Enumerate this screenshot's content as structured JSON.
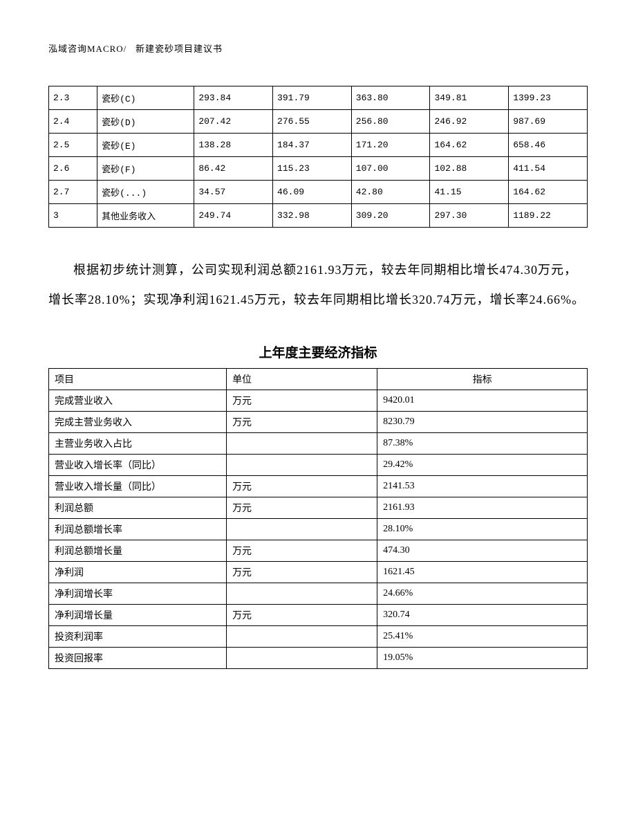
{
  "header": {
    "company": "泓域咨询MACRO/",
    "doc_title": "新建瓷砂项目建议书"
  },
  "table1": {
    "rows": [
      {
        "id": "2.3",
        "name": "瓷砂(C)",
        "v1": "293.84",
        "v2": "391.79",
        "v3": "363.80",
        "v4": "349.81",
        "v5": "1399.23"
      },
      {
        "id": "2.4",
        "name": "瓷砂(D)",
        "v1": "207.42",
        "v2": "276.55",
        "v3": "256.80",
        "v4": "246.92",
        "v5": "987.69"
      },
      {
        "id": "2.5",
        "name": "瓷砂(E)",
        "v1": "138.28",
        "v2": "184.37",
        "v3": "171.20",
        "v4": "164.62",
        "v5": "658.46"
      },
      {
        "id": "2.6",
        "name": "瓷砂(F)",
        "v1": "86.42",
        "v2": "115.23",
        "v3": "107.00",
        "v4": "102.88",
        "v5": "411.54"
      },
      {
        "id": "2.7",
        "name": "瓷砂(...)",
        "v1": "34.57",
        "v2": "46.09",
        "v3": "42.80",
        "v4": "41.15",
        "v5": "164.62"
      },
      {
        "id": "3",
        "name": "其他业务收入",
        "v1": "249.74",
        "v2": "332.98",
        "v3": "309.20",
        "v4": "297.30",
        "v5": "1189.22"
      }
    ]
  },
  "paragraph": "根据初步统计测算，公司实现利润总额2161.93万元，较去年同期相比增长474.30万元，增长率28.10%；实现净利润1621.45万元，较去年同期相比增长320.74万元，增长率24.66%。",
  "section_title": "上年度主要经济指标",
  "table2": {
    "headers": {
      "project": "项目",
      "unit": "单位",
      "indicator": "指标"
    },
    "rows": [
      {
        "project": "完成营业收入",
        "unit": "万元",
        "indicator": "9420.01"
      },
      {
        "project": "完成主营业务收入",
        "unit": "万元",
        "indicator": "8230.79"
      },
      {
        "project": "主营业务收入占比",
        "unit": "",
        "indicator": "87.38%"
      },
      {
        "project": "营业收入增长率（同比）",
        "unit": "",
        "indicator": "29.42%"
      },
      {
        "project": "营业收入增长量（同比）",
        "unit": "万元",
        "indicator": "2141.53"
      },
      {
        "project": "利润总额",
        "unit": "万元",
        "indicator": "2161.93"
      },
      {
        "project": "利润总额增长率",
        "unit": "",
        "indicator": "28.10%"
      },
      {
        "project": "利润总额增长量",
        "unit": "万元",
        "indicator": "474.30"
      },
      {
        "project": "净利润",
        "unit": "万元",
        "indicator": "1621.45"
      },
      {
        "project": "净利润增长率",
        "unit": "",
        "indicator": "24.66%"
      },
      {
        "project": "净利润增长量",
        "unit": "万元",
        "indicator": "320.74"
      },
      {
        "project": "投资利润率",
        "unit": "",
        "indicator": "25.41%"
      },
      {
        "project": "投资回报率",
        "unit": "",
        "indicator": "19.05%"
      }
    ]
  }
}
